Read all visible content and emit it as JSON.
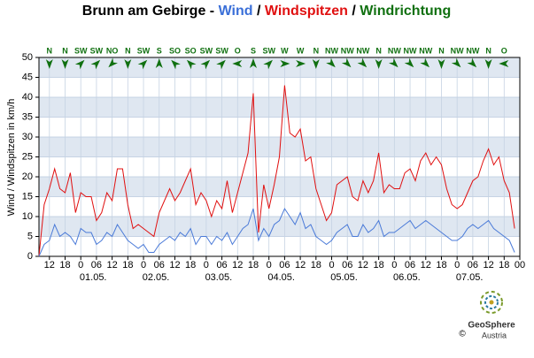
{
  "chart_data": {
    "type": "line",
    "title_parts": [
      {
        "text": "Brunn am Gebirge - ",
        "color": "#000000"
      },
      {
        "text": "Wind",
        "color": "#3a6fd8"
      },
      {
        "text": " / ",
        "color": "#000000"
      },
      {
        "text": "Windspitzen",
        "color": "#e01010"
      },
      {
        "text": " / ",
        "color": "#000000"
      },
      {
        "text": "Windrichtung",
        "color": "#107010"
      }
    ],
    "ylabel": "Wind / Windspitzen in km/h",
    "xlim": [
      -16,
      168
    ],
    "ylim": [
      0,
      50
    ],
    "yticks": [
      0,
      5,
      10,
      15,
      20,
      25,
      30,
      35,
      40,
      45,
      50
    ],
    "xticks": [
      {
        "value": -12,
        "label": "12"
      },
      {
        "value": -6,
        "label": "18"
      },
      0,
      {
        "value": 6,
        "label": "06"
      },
      12,
      18,
      {
        "value": 24,
        "label": "0"
      },
      {
        "value": 30,
        "label": "06"
      },
      {
        "value": 36,
        "label": "12"
      },
      {
        "value": 42,
        "label": "18"
      },
      {
        "value": 48,
        "label": "0"
      },
      {
        "value": 54,
        "label": "06"
      },
      {
        "value": 60,
        "label": "12"
      },
      {
        "value": 66,
        "label": "18"
      },
      {
        "value": 72,
        "label": "0"
      },
      {
        "value": 78,
        "label": "06"
      },
      {
        "value": 84,
        "label": "12"
      },
      {
        "value": 90,
        "label": "18"
      },
      {
        "value": 96,
        "label": "0"
      },
      {
        "value": 102,
        "label": "06"
      },
      {
        "value": 108,
        "label": "12"
      },
      {
        "value": 114,
        "label": "18"
      },
      {
        "value": 120,
        "label": "0"
      },
      {
        "value": 126,
        "label": "06"
      },
      {
        "value": 132,
        "label": "12"
      },
      {
        "value": 138,
        "label": "18"
      },
      {
        "value": 144,
        "label": "0"
      },
      {
        "value": 150,
        "label": "06"
      },
      {
        "value": 156,
        "label": "12"
      },
      {
        "value": 162,
        "label": "18"
      },
      {
        "value": 168,
        "label": "00"
      }
    ],
    "day_labels": [
      {
        "value": 0,
        "label": "01.05."
      },
      {
        "value": 24,
        "label": "02.05."
      },
      {
        "value": 48,
        "label": "03.05."
      },
      {
        "value": 72,
        "label": "04.05."
      },
      {
        "value": 96,
        "label": "05.05."
      },
      {
        "value": 120,
        "label": "06.05."
      },
      {
        "value": 144,
        "label": "07.05."
      }
    ],
    "grid": true,
    "band_color": "#dfe7f1",
    "x": [
      -16,
      -14,
      -12,
      -10,
      -8,
      -6,
      -4,
      -2,
      0,
      2,
      4,
      6,
      8,
      10,
      12,
      14,
      16,
      18,
      20,
      22,
      24,
      26,
      28,
      30,
      32,
      34,
      36,
      38,
      40,
      42,
      44,
      46,
      48,
      50,
      52,
      54,
      56,
      58,
      60,
      62,
      64,
      66,
      68,
      70,
      72,
      74,
      76,
      78,
      80,
      82,
      84,
      86,
      88,
      90,
      92,
      94,
      96,
      98,
      100,
      102,
      104,
      106,
      108,
      110,
      112,
      114,
      116,
      118,
      120,
      122,
      124,
      126,
      128,
      130,
      132,
      134,
      136,
      138,
      140,
      142,
      144,
      146,
      148,
      150,
      152,
      154,
      156,
      158,
      160,
      162,
      164,
      166
    ],
    "series": [
      {
        "name": "Windspitzen",
        "color": "#e01010",
        "values": [
          0,
          13,
          17,
          22,
          17,
          16,
          21,
          11,
          16,
          15,
          15,
          9,
          11,
          16,
          14,
          22,
          22,
          13,
          7,
          8,
          7,
          6,
          5,
          11,
          14,
          17,
          14,
          16,
          19,
          22,
          13,
          16,
          14,
          10,
          14,
          12,
          19,
          11,
          16,
          21,
          26,
          41,
          6,
          18,
          12,
          18,
          25,
          43,
          31,
          30,
          32,
          24,
          25,
          17,
          13,
          9,
          11,
          18,
          19,
          20,
          15,
          14,
          19,
          16,
          19,
          26,
          16,
          18,
          17,
          17,
          21,
          22,
          19,
          24,
          26,
          23,
          25,
          23,
          17,
          13,
          12,
          13,
          16,
          19,
          20,
          24,
          27,
          23,
          25,
          19,
          16,
          7
        ]
      },
      {
        "name": "Wind",
        "color": "#4a7ad8",
        "values": [
          0,
          3,
          4,
          8,
          5,
          6,
          5,
          3,
          7,
          6,
          6,
          3,
          4,
          6,
          5,
          8,
          6,
          4,
          3,
          2,
          3,
          1,
          1,
          3,
          4,
          5,
          4,
          6,
          5,
          7,
          3,
          5,
          5,
          3,
          5,
          4,
          6,
          3,
          5,
          7,
          8,
          12,
          4,
          7,
          5,
          8,
          9,
          12,
          10,
          8,
          11,
          7,
          8,
          5,
          4,
          3,
          4,
          6,
          7,
          8,
          5,
          5,
          8,
          6,
          7,
          9,
          5,
          6,
          6,
          7,
          8,
          9,
          7,
          8,
          9,
          8,
          7,
          6,
          5,
          4,
          4,
          5,
          7,
          8,
          7,
          8,
          9,
          7,
          6,
          5,
          4,
          1
        ]
      }
    ],
    "direction": {
      "color": "#107010",
      "x": [
        -12,
        -6,
        0,
        6,
        12,
        18,
        24,
        30,
        36,
        42,
        48,
        54,
        60,
        66,
        72,
        78,
        84,
        90,
        96,
        102,
        108,
        114,
        120,
        126,
        132,
        138,
        144,
        150,
        156,
        162
      ],
      "labels": [
        "N",
        "N",
        "SW",
        "SW",
        "NO",
        "N",
        "SW",
        "S",
        "SO",
        "SO",
        "SW",
        "SW",
        "O",
        "S",
        "SW",
        "W",
        "W",
        "N",
        "NW",
        "NW",
        "NW",
        "N",
        "NW",
        "NW",
        "NW",
        "N",
        "NW",
        "NW",
        "N",
        "O"
      ],
      "degrees": [
        0,
        0,
        225,
        225,
        45,
        0,
        225,
        180,
        135,
        135,
        225,
        225,
        90,
        180,
        225,
        270,
        270,
        0,
        315,
        315,
        315,
        0,
        315,
        315,
        315,
        0,
        315,
        315,
        0,
        90
      ]
    },
    "logo": {
      "name": "GeoSphere",
      "sub": "Austria",
      "copyright": "©"
    }
  }
}
